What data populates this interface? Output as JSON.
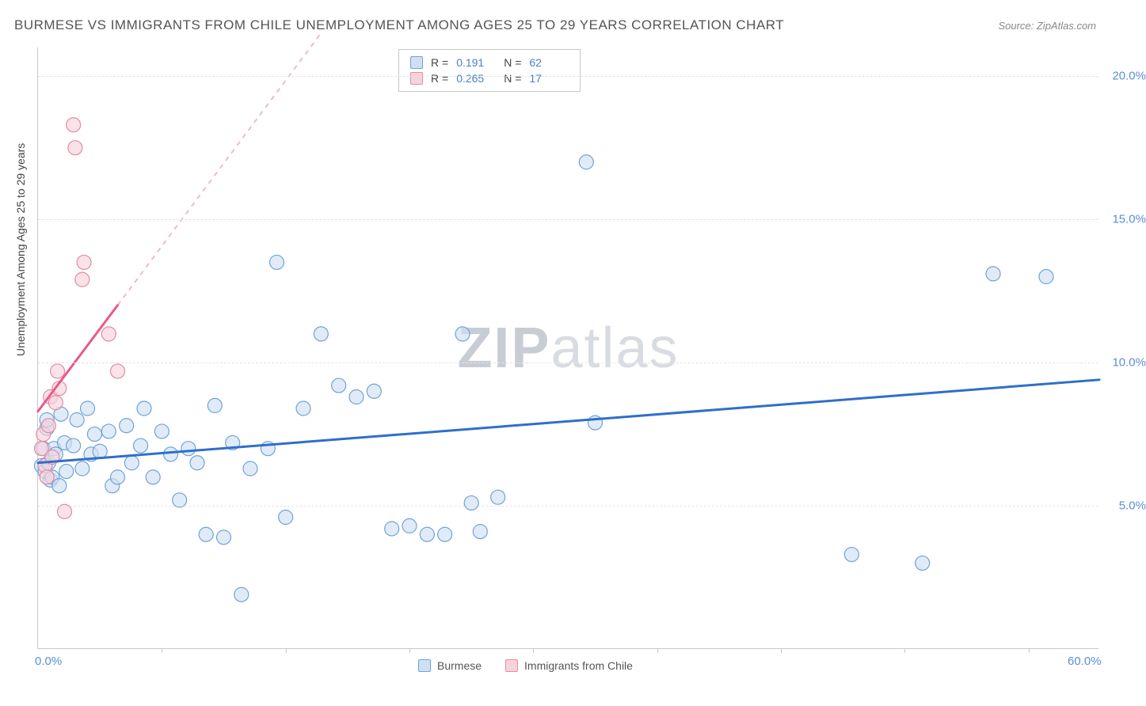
{
  "title": "BURMESE VS IMMIGRANTS FROM CHILE UNEMPLOYMENT AMONG AGES 25 TO 29 YEARS CORRELATION CHART",
  "source": "Source: ZipAtlas.com",
  "ylabel": "Unemployment Among Ages 25 to 29 years",
  "watermark_a": "ZIP",
  "watermark_b": "atlas",
  "chart": {
    "type": "scatter",
    "xlim": [
      0,
      60
    ],
    "ylim": [
      0,
      21
    ],
    "xtick_positions": [
      0,
      60
    ],
    "xtick_labels": [
      "0.0%",
      "60.0%"
    ],
    "xtick_minor": [
      7,
      14,
      21,
      28,
      35,
      42,
      49,
      56
    ],
    "ytick_positions": [
      5,
      10,
      15,
      20
    ],
    "ytick_labels": [
      "5.0%",
      "10.0%",
      "15.0%",
      "20.0%"
    ],
    "grid_color": "#e4e4e4",
    "background_color": "#ffffff",
    "axis_color": "#c8c8c8",
    "label_color": "#5a8fd6",
    "marker_radius": 9,
    "marker_stroke_width": 1.2,
    "line_width": 3
  },
  "series": [
    {
      "name": "Burmese",
      "fill": "#cfe0f3",
      "stroke": "#6fa3d9",
      "fill_opacity": 0.65,
      "line_color": "#2f6fc9",
      "line_dash_ext": "#a8c4e8",
      "R": "0.191",
      "N": "62",
      "trend": {
        "x1": 0,
        "y1": 6.5,
        "x2": 60,
        "y2": 9.4,
        "ext_x2": 60,
        "ext_y2": 9.4
      },
      "points": [
        [
          0.2,
          6.4
        ],
        [
          0.3,
          7.0
        ],
        [
          0.4,
          6.2
        ],
        [
          0.5,
          7.7
        ],
        [
          0.5,
          8.0
        ],
        [
          0.6,
          6.5
        ],
        [
          0.7,
          5.9
        ],
        [
          0.8,
          6.0
        ],
        [
          0.9,
          7.0
        ],
        [
          1.0,
          6.8
        ],
        [
          1.2,
          5.7
        ],
        [
          1.3,
          8.2
        ],
        [
          1.5,
          7.2
        ],
        [
          1.6,
          6.2
        ],
        [
          2.0,
          7.1
        ],
        [
          2.2,
          8.0
        ],
        [
          2.5,
          6.3
        ],
        [
          2.8,
          8.4
        ],
        [
          3.0,
          6.8
        ],
        [
          3.2,
          7.5
        ],
        [
          3.5,
          6.9
        ],
        [
          4.0,
          7.6
        ],
        [
          4.2,
          5.7
        ],
        [
          4.5,
          6.0
        ],
        [
          5.0,
          7.8
        ],
        [
          5.3,
          6.5
        ],
        [
          5.8,
          7.1
        ],
        [
          6.0,
          8.4
        ],
        [
          6.5,
          6.0
        ],
        [
          7.0,
          7.6
        ],
        [
          7.5,
          6.8
        ],
        [
          8.0,
          5.2
        ],
        [
          8.5,
          7.0
        ],
        [
          9.0,
          6.5
        ],
        [
          9.5,
          4.0
        ],
        [
          10.0,
          8.5
        ],
        [
          10.5,
          3.9
        ],
        [
          11.0,
          7.2
        ],
        [
          11.5,
          1.9
        ],
        [
          12.0,
          6.3
        ],
        [
          13.0,
          7.0
        ],
        [
          13.5,
          13.5
        ],
        [
          14.0,
          4.6
        ],
        [
          15.0,
          8.4
        ],
        [
          16.0,
          11.0
        ],
        [
          17.0,
          9.2
        ],
        [
          18.0,
          8.8
        ],
        [
          19.0,
          9.0
        ],
        [
          20.0,
          4.2
        ],
        [
          21.0,
          4.3
        ],
        [
          22.0,
          4.0
        ],
        [
          23.0,
          4.0
        ],
        [
          24.0,
          11.0
        ],
        [
          24.5,
          5.1
        ],
        [
          25.0,
          4.1
        ],
        [
          26.0,
          5.3
        ],
        [
          31.0,
          17.0
        ],
        [
          31.5,
          7.9
        ],
        [
          46.0,
          3.3
        ],
        [
          50.0,
          3.0
        ],
        [
          54.0,
          13.1
        ],
        [
          57.0,
          13.0
        ]
      ]
    },
    {
      "name": "Immigrants from Chile",
      "fill": "#f6d3dc",
      "stroke": "#e58aa3",
      "fill_opacity": 0.65,
      "line_color": "#e85a8a",
      "line_dash_ext": "#f3b8ca",
      "R": "0.265",
      "N": "17",
      "trend": {
        "x1": 0,
        "y1": 8.3,
        "x2": 4.5,
        "y2": 12.0,
        "ext_x2": 16,
        "ext_y2": 21.5
      },
      "points": [
        [
          0.2,
          7.0
        ],
        [
          0.3,
          7.5
        ],
        [
          0.4,
          6.4
        ],
        [
          0.5,
          6.0
        ],
        [
          0.6,
          7.8
        ],
        [
          0.7,
          8.8
        ],
        [
          0.8,
          6.7
        ],
        [
          1.0,
          8.6
        ],
        [
          1.1,
          9.7
        ],
        [
          1.2,
          9.1
        ],
        [
          1.5,
          4.8
        ],
        [
          2.0,
          18.3
        ],
        [
          2.1,
          17.5
        ],
        [
          2.5,
          12.9
        ],
        [
          2.6,
          13.5
        ],
        [
          4.0,
          11.0
        ],
        [
          4.5,
          9.7
        ]
      ]
    }
  ],
  "legend_bottom": [
    {
      "label": "Burmese",
      "fill": "#cfe0f3",
      "stroke": "#6fa3d9"
    },
    {
      "label": "Immigrants from Chile",
      "fill": "#f6d3dc",
      "stroke": "#e58aa3"
    }
  ]
}
